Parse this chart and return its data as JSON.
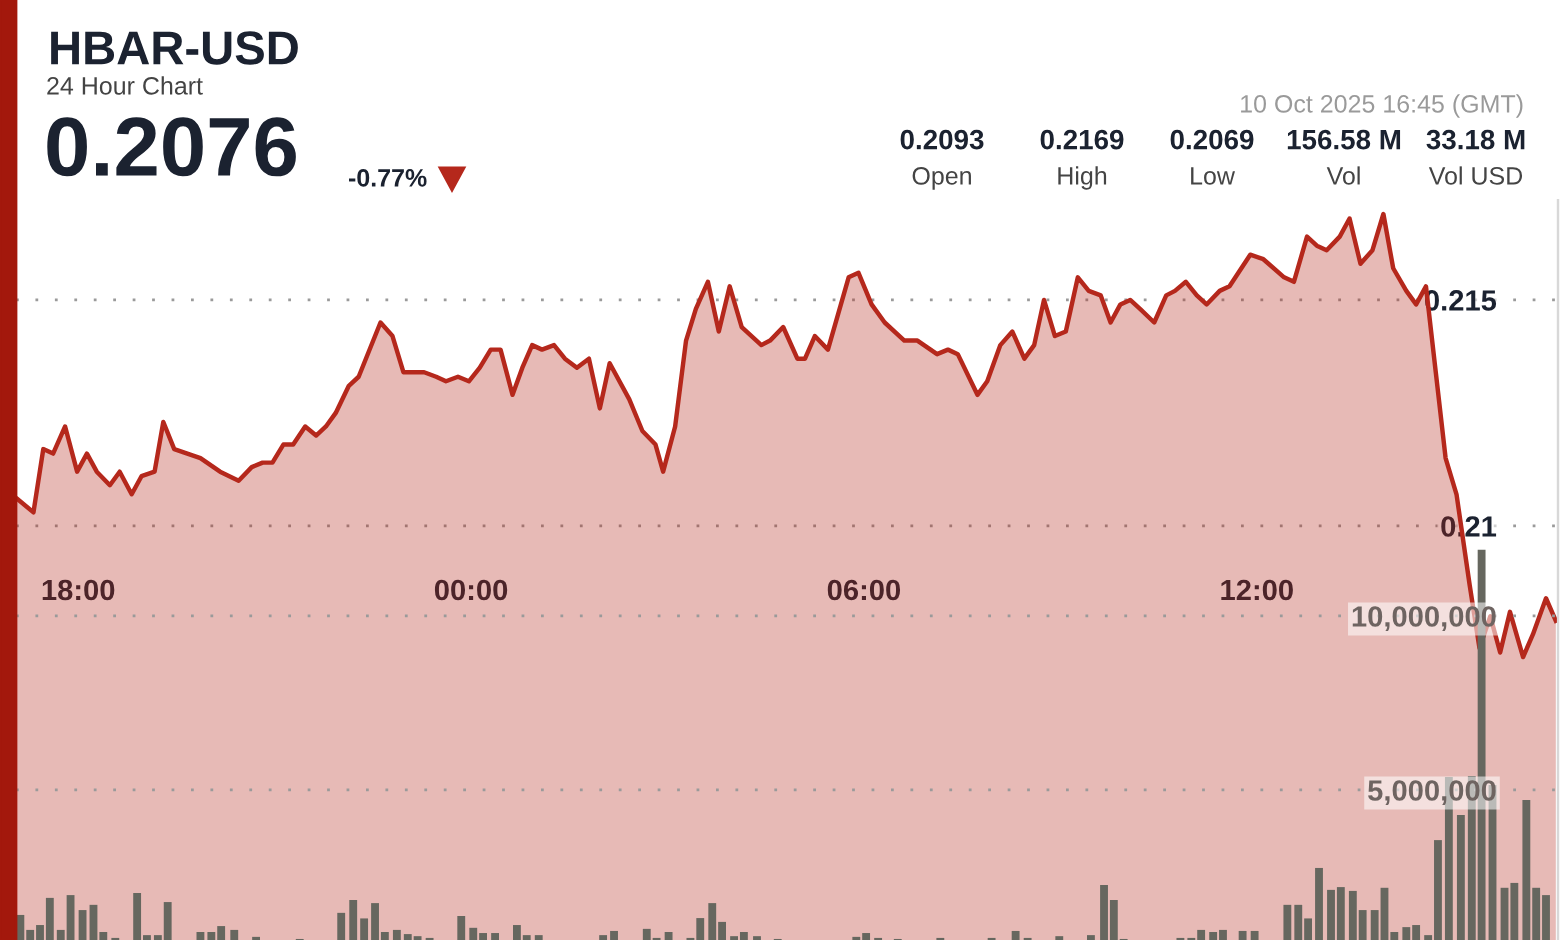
{
  "chart_data": {
    "type": "area",
    "title": "HBAR-USD",
    "subtitle": "24 Hour Chart",
    "annotations": [
      "0.2076",
      "-0.77%",
      "0.2093",
      "Open",
      "0.2169",
      "High",
      "0.2069",
      "Low",
      "156.58 M",
      "Vol",
      "33.18 M",
      "Vol USD",
      "10 Oct 2025 16:45 (GMT)"
    ],
    "xlim": [
      "2025-10-09T17:03",
      "2025-10-10T16:36"
    ],
    "xticks": [
      {
        "value": "2025-10-09T18:00",
        "label": "18:00"
      },
      {
        "value": "2025-10-10T00:00",
        "label": "00:00"
      },
      {
        "value": "2025-10-10T06:00",
        "label": "06:00"
      },
      {
        "value": "2025-10-10T12:00",
        "label": "12:00"
      }
    ],
    "ylim": [
      0.20084,
      0.21721
    ],
    "yticks": [
      0.21,
      0.215
    ],
    "y2lim": [
      690000,
      21950000
    ],
    "y2ticks": [
      {
        "value": 5000000,
        "label": "5,000,000"
      },
      {
        "value": 10000000,
        "label": "10,000,000"
      }
    ],
    "grid": "y",
    "legend": false,
    "marker": "none",
    "line_style": "solid",
    "series": [
      {
        "color": "#b5281c",
        "x": [
          "2025-10-09T17:04",
          "2025-10-09T17:19",
          "2025-10-09T17:28",
          "2025-10-09T17:37",
          "2025-10-09T17:48",
          "2025-10-09T17:59",
          "2025-10-09T18:08",
          "2025-10-09T18:17",
          "2025-10-09T18:29",
          "2025-10-09T18:38",
          "2025-10-09T18:49",
          "2025-10-09T18:58",
          "2025-10-09T19:10",
          "2025-10-09T19:18",
          "2025-10-09T19:28",
          "2025-10-09T19:52",
          "2025-10-09T20:10",
          "2025-10-09T20:27",
          "2025-10-09T20:39",
          "2025-10-09T20:49",
          "2025-10-09T20:58",
          "2025-10-09T21:08",
          "2025-10-09T21:17",
          "2025-10-09T21:28",
          "2025-10-09T21:38",
          "2025-10-09T21:47",
          "2025-10-09T21:56",
          "2025-10-09T22:08",
          "2025-10-09T22:17",
          "2025-10-09T22:37",
          "2025-10-09T22:48",
          "2025-10-09T22:58",
          "2025-10-09T23:17",
          "2025-10-09T23:28",
          "2025-10-09T23:37",
          "2025-10-09T23:48",
          "2025-10-09T23:58",
          "2025-10-10T00:08",
          "2025-10-10T00:18",
          "2025-10-10T00:27",
          "2025-10-10T00:38",
          "2025-10-10T00:47",
          "2025-10-10T00:56",
          "2025-10-10T01:05",
          "2025-10-10T01:16",
          "2025-10-10T01:26",
          "2025-10-10T01:37",
          "2025-10-10T01:48",
          "2025-10-10T01:58",
          "2025-10-10T02:07",
          "2025-10-10T02:25",
          "2025-10-10T02:37",
          "2025-10-10T02:49",
          "2025-10-10T02:56",
          "2025-10-10T03:07",
          "2025-10-10T03:17",
          "2025-10-10T03:26",
          "2025-10-10T03:37",
          "2025-10-10T03:47",
          "2025-10-10T03:57",
          "2025-10-10T04:08",
          "2025-10-10T04:26",
          "2025-10-10T04:34",
          "2025-10-10T04:46",
          "2025-10-10T04:59",
          "2025-10-10T05:06",
          "2025-10-10T05:15",
          "2025-10-10T05:27",
          "2025-10-10T05:46",
          "2025-10-10T05:55",
          "2025-10-10T06:07",
          "2025-10-10T06:19",
          "2025-10-10T06:37",
          "2025-10-10T06:49",
          "2025-10-10T07:07",
          "2025-10-10T07:17",
          "2025-10-10T07:26",
          "2025-10-10T07:44",
          "2025-10-10T07:53",
          "2025-10-10T08:05",
          "2025-10-10T08:16",
          "2025-10-10T08:27",
          "2025-10-10T08:36",
          "2025-10-10T08:45",
          "2025-10-10T08:55",
          "2025-10-10T09:05",
          "2025-10-10T09:16",
          "2025-10-10T09:26",
          "2025-10-10T09:37",
          "2025-10-10T09:46",
          "2025-10-10T09:55",
          "2025-10-10T10:04",
          "2025-10-10T10:13",
          "2025-10-10T10:26",
          "2025-10-10T10:37",
          "2025-10-10T10:45",
          "2025-10-10T10:55",
          "2025-10-10T11:05",
          "2025-10-10T11:14",
          "2025-10-10T11:26",
          "2025-10-10T11:35",
          "2025-10-10T11:54",
          "2025-10-10T12:06",
          "2025-10-10T12:25",
          "2025-10-10T12:34",
          "2025-10-10T12:46",
          "2025-10-10T12:55",
          "2025-10-10T13:04",
          "2025-10-10T13:16",
          "2025-10-10T13:25",
          "2025-10-10T13:35",
          "2025-10-10T13:46",
          "2025-10-10T13:56",
          "2025-10-10T14:05",
          "2025-10-10T14:17",
          "2025-10-10T14:26",
          "2025-10-10T14:35",
          "2025-10-10T14:44",
          "2025-10-10T14:53",
          "2025-10-10T15:03",
          "2025-10-10T15:15",
          "2025-10-10T15:24",
          "2025-10-10T15:34",
          "2025-10-10T15:43",
          "2025-10-10T15:52",
          "2025-10-10T16:04",
          "2025-10-10T16:13",
          "2025-10-10T16:25",
          "2025-10-10T16:34"
        ],
        "values": [
          0.2106,
          0.2103,
          0.2117,
          0.2116,
          0.2122,
          0.2112,
          0.2116,
          0.2112,
          0.2109,
          0.2112,
          0.2107,
          0.2111,
          0.2112,
          0.2123,
          0.2117,
          0.2115,
          0.2112,
          0.211,
          0.2113,
          0.2114,
          0.2114,
          0.2118,
          0.2118,
          0.2122,
          0.212,
          0.2122,
          0.2125,
          0.2131,
          0.2133,
          0.2145,
          0.2142,
          0.2134,
          0.2134,
          0.2133,
          0.2132,
          0.2133,
          0.2132,
          0.2135,
          0.2139,
          0.2139,
          0.2129,
          0.2135,
          0.214,
          0.2139,
          0.214,
          0.2137,
          0.2135,
          0.2137,
          0.2126,
          0.2136,
          0.2128,
          0.2121,
          0.2118,
          0.2112,
          0.2122,
          0.2141,
          0.2148,
          0.2154,
          0.2143,
          0.2153,
          0.2144,
          0.214,
          0.2141,
          0.2144,
          0.2137,
          0.2137,
          0.2142,
          0.2139,
          0.2155,
          0.2156,
          0.2149,
          0.2145,
          0.2141,
          0.2141,
          0.2138,
          0.2139,
          0.2138,
          0.2129,
          0.2132,
          0.214,
          0.2143,
          0.2137,
          0.214,
          0.215,
          0.2142,
          0.2143,
          0.2155,
          0.2152,
          0.2151,
          0.2145,
          0.2149,
          0.215,
          0.2148,
          0.2145,
          0.2151,
          0.2152,
          0.2154,
          0.2151,
          0.2149,
          0.2152,
          0.2153,
          0.216,
          0.2159,
          0.2155,
          0.2154,
          0.2164,
          0.2162,
          0.2161,
          0.2164,
          0.2168,
          0.2158,
          0.2161,
          0.2169,
          0.2157,
          0.2152,
          0.2149,
          0.2153,
          0.2134,
          0.2115,
          0.2107,
          0.2087,
          0.2073,
          0.208,
          0.2072,
          0.2081,
          0.2071,
          0.2076,
          0.2084,
          0.2079
        ]
      },
      {
        "type": "bar",
        "axis": "y2",
        "color": "#66675f",
        "x": [
          "2025-10-09T17:07",
          "2025-10-09T17:16",
          "2025-10-09T17:25",
          "2025-10-09T17:34",
          "2025-10-09T17:44",
          "2025-10-09T17:53",
          "2025-10-09T18:04",
          "2025-10-09T18:14",
          "2025-10-09T18:23",
          "2025-10-09T18:34",
          "2025-10-09T18:54",
          "2025-10-09T19:03",
          "2025-10-09T19:13",
          "2025-10-09T19:22",
          "2025-10-09T19:52",
          "2025-10-09T20:02",
          "2025-10-09T20:11",
          "2025-10-09T20:23",
          "2025-10-09T20:43",
          "2025-10-09T21:23",
          "2025-10-09T22:01",
          "2025-10-09T22:12",
          "2025-10-09T22:22",
          "2025-10-09T22:32",
          "2025-10-09T22:41",
          "2025-10-09T22:52",
          "2025-10-09T23:02",
          "2025-10-09T23:11",
          "2025-10-09T23:22",
          "2025-10-09T23:51",
          "2025-10-10T00:02",
          "2025-10-10T00:11",
          "2025-10-10T00:22",
          "2025-10-10T00:42",
          "2025-10-10T00:51",
          "2025-10-10T01:02",
          "2025-10-10T02:01",
          "2025-10-10T02:11",
          "2025-10-10T02:41",
          "2025-10-10T02:50",
          "2025-10-10T03:01",
          "2025-10-10T03:21",
          "2025-10-10T03:30",
          "2025-10-10T03:41",
          "2025-10-10T03:50",
          "2025-10-10T04:01",
          "2025-10-10T04:10",
          "2025-10-10T04:22",
          "2025-10-10T04:41",
          "2025-10-10T05:53",
          "2025-10-10T06:02",
          "2025-10-10T06:13",
          "2025-10-10T06:31",
          "2025-10-10T07:10",
          "2025-10-10T07:57",
          "2025-10-10T08:19",
          "2025-10-10T08:30",
          "2025-10-10T08:59",
          "2025-10-10T09:28",
          "2025-10-10T09:40",
          "2025-10-10T09:49",
          "2025-10-10T09:58",
          "2025-10-10T10:50",
          "2025-10-10T11:00",
          "2025-10-10T11:09",
          "2025-10-10T11:20",
          "2025-10-10T11:29",
          "2025-10-10T11:47",
          "2025-10-10T11:58",
          "2025-10-10T12:28",
          "2025-10-10T12:38",
          "2025-10-10T12:47",
          "2025-10-10T12:57",
          "2025-10-10T13:08",
          "2025-10-10T13:17",
          "2025-10-10T13:28",
          "2025-10-10T13:37",
          "2025-10-10T13:48",
          "2025-10-10T13:57",
          "2025-10-10T14:06",
          "2025-10-10T14:17",
          "2025-10-10T14:26",
          "2025-10-10T14:37",
          "2025-10-10T14:46",
          "2025-10-10T14:56",
          "2025-10-10T15:07",
          "2025-10-10T15:17",
          "2025-10-10T15:26",
          "2025-10-10T15:36",
          "2025-10-10T15:47",
          "2025-10-10T15:56",
          "2025-10-10T16:07",
          "2025-10-10T16:16",
          "2025-10-10T16:25"
        ],
        "values": [
          1410000,
          980000,
          1120000,
          1900000,
          980000,
          1980000,
          1550000,
          1700000,
          920000,
          750000,
          2040000,
          830000,
          830000,
          1780000,
          920000,
          920000,
          1090000,
          980000,
          780000,
          720000,
          1470000,
          1840000,
          1310000,
          1750000,
          920000,
          980000,
          860000,
          800000,
          750000,
          1380000,
          1040000,
          890000,
          890000,
          1120000,
          830000,
          830000,
          830000,
          950000,
          1010000,
          750000,
          920000,
          750000,
          1320000,
          1750000,
          1210000,
          800000,
          920000,
          800000,
          720000,
          780000,
          890000,
          750000,
          720000,
          750000,
          750000,
          950000,
          750000,
          800000,
          830000,
          2270000,
          1840000,
          720000,
          750000,
          750000,
          980000,
          920000,
          980000,
          950000,
          950000,
          1700000,
          1700000,
          1310000,
          2760000,
          2130000,
          2210000,
          2100000,
          1550000,
          1550000,
          2190000,
          920000,
          1060000,
          1120000,
          830000,
          3560000,
          5370000,
          4280000,
          5400000,
          11900000,
          5140000,
          2190000,
          2330000,
          4710000,
          2190000,
          1980000
        ]
      }
    ]
  }
}
